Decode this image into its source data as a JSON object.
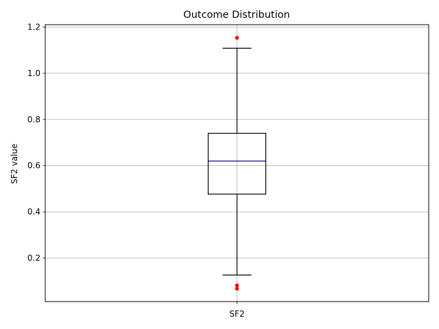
{
  "chart_data": {
    "type": "box",
    "title": "Outcome Distribution",
    "xlabel": "",
    "ylabel": "SF2 value",
    "categories": [
      "SF2"
    ],
    "ylim": [
      0.012,
      1.21
    ],
    "y_ticks": [
      0.2,
      0.4,
      0.6,
      0.8,
      1.0,
      1.2
    ],
    "y_tick_labels": [
      "0.2",
      "0.4",
      "0.6",
      "0.8",
      "1.0",
      "1.2"
    ],
    "grid": true,
    "boxes": [
      {
        "category": "SF2",
        "whisker_low": 0.127,
        "q1": 0.477,
        "median": 0.62,
        "q3": 0.74,
        "whisker_high": 1.108,
        "outliers": [
          1.153,
          0.082,
          0.068
        ]
      }
    ],
    "colors": {
      "box": "#000000",
      "median": "#00008b",
      "outlier": "#ff0000",
      "grid": "#b0b0b0"
    }
  }
}
